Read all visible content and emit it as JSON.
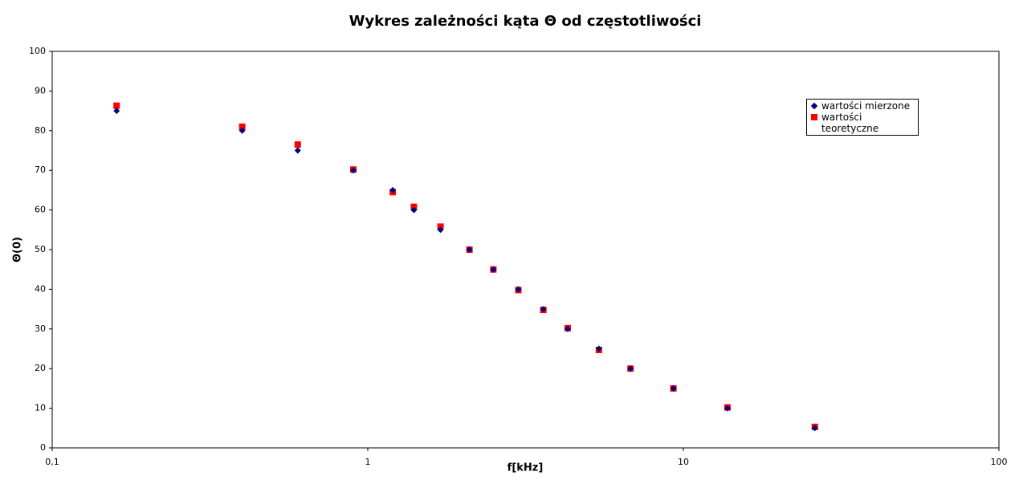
{
  "chart_data": {
    "type": "scatter",
    "title": "Wykres zależności kąta Θ od częstotliwości",
    "x_label": "f[kHz]",
    "y_label": "Θ(0)",
    "x": [
      0.16,
      0.4,
      0.6,
      0.9,
      1.2,
      1.4,
      1.7,
      2.1,
      2.5,
      3.0,
      3.6,
      4.3,
      5.4,
      6.8,
      9.3,
      13.8,
      26.1
    ],
    "series": [
      {
        "name": "wartości mierzone",
        "color": "#000080",
        "marker": "diamond",
        "values": [
          85,
          80,
          75,
          70,
          65,
          60,
          55,
          50,
          45,
          40,
          35,
          30,
          25,
          20,
          15,
          10,
          5
        ]
      },
      {
        "name": "wartości teoretyczne",
        "color": "#ff0000",
        "marker": "square",
        "values": [
          86.3,
          81,
          76.5,
          70.2,
          64.5,
          60.8,
          55.8,
          50,
          45,
          39.8,
          34.8,
          30.2,
          24.7,
          20,
          15,
          10.2,
          5.3
        ]
      }
    ],
    "xscale": "log",
    "xlim": [
      0.1,
      100
    ],
    "xticks": [
      {
        "value": 0.1,
        "label": "0,1"
      },
      1,
      10,
      100
    ],
    "ylim": [
      0,
      100
    ],
    "yticks": [
      0,
      10,
      20,
      30,
      40,
      50,
      60,
      70,
      80,
      90,
      100
    ],
    "grid": false,
    "legend": "upper right"
  }
}
